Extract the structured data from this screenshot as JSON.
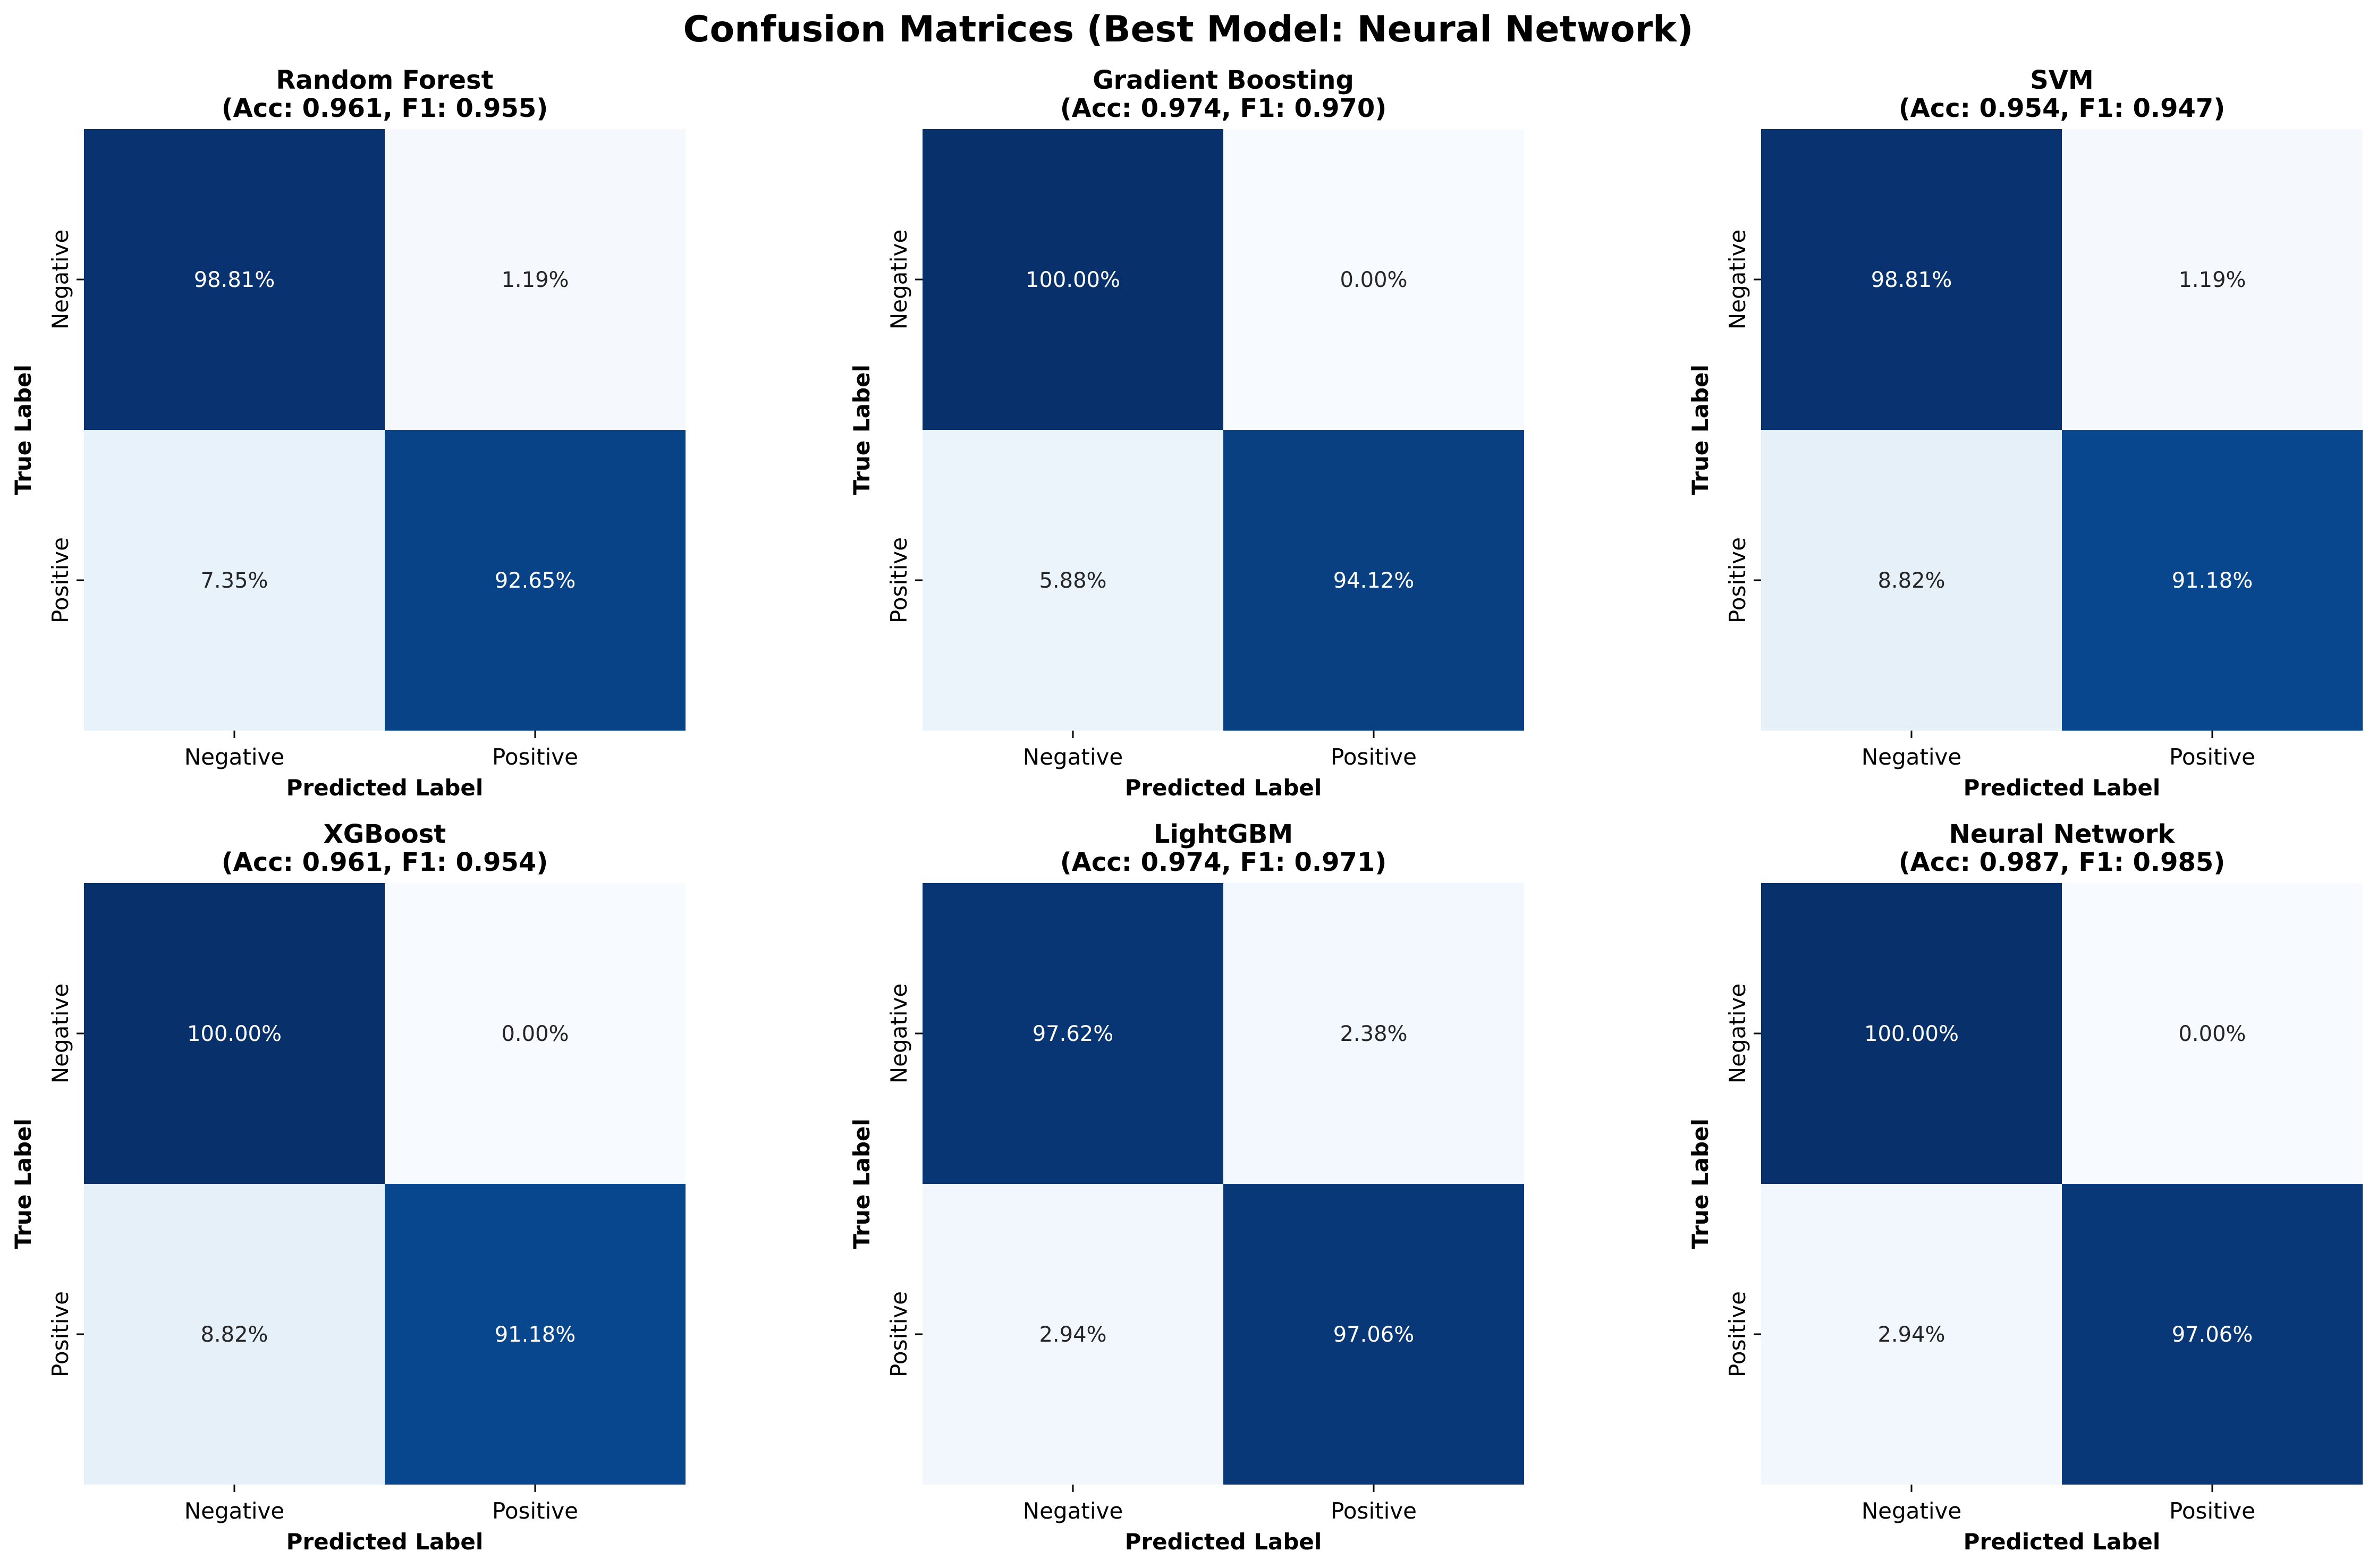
{
  "chart_data": {
    "type": "heatmap",
    "title": "Confusion Matrices (Best Model: Neural Network)",
    "colormap": "Blues",
    "value_range": [
      0,
      100
    ],
    "matrices": [
      {
        "model": "Random Forest",
        "subtitle": "(Acc: 0.961, F1: 0.955)",
        "xlabel": "Predicted Label",
        "ylabel": "True Label",
        "x_categories": [
          "Negative",
          "Positive"
        ],
        "y_categories": [
          "Negative",
          "Positive"
        ],
        "values": [
          [
            98.81,
            1.19
          ],
          [
            7.35,
            92.65
          ]
        ],
        "labels": [
          [
            "98.81%",
            "1.19%"
          ],
          [
            "7.35%",
            "92.65%"
          ]
        ]
      },
      {
        "model": "Gradient Boosting",
        "subtitle": "(Acc: 0.974, F1: 0.970)",
        "xlabel": "Predicted Label",
        "ylabel": "True Label",
        "x_categories": [
          "Negative",
          "Positive"
        ],
        "y_categories": [
          "Negative",
          "Positive"
        ],
        "values": [
          [
            100.0,
            0.0
          ],
          [
            5.88,
            94.12
          ]
        ],
        "labels": [
          [
            "100.00%",
            "0.00%"
          ],
          [
            "5.88%",
            "94.12%"
          ]
        ]
      },
      {
        "model": "SVM",
        "subtitle": "(Acc: 0.954, F1: 0.947)",
        "xlabel": "Predicted Label",
        "ylabel": "True Label",
        "x_categories": [
          "Negative",
          "Positive"
        ],
        "y_categories": [
          "Negative",
          "Positive"
        ],
        "values": [
          [
            98.81,
            1.19
          ],
          [
            8.82,
            91.18
          ]
        ],
        "labels": [
          [
            "98.81%",
            "1.19%"
          ],
          [
            "8.82%",
            "91.18%"
          ]
        ]
      },
      {
        "model": "XGBoost",
        "subtitle": "(Acc: 0.961, F1: 0.954)",
        "xlabel": "Predicted Label",
        "ylabel": "True Label",
        "x_categories": [
          "Negative",
          "Positive"
        ],
        "y_categories": [
          "Negative",
          "Positive"
        ],
        "values": [
          [
            100.0,
            0.0
          ],
          [
            8.82,
            91.18
          ]
        ],
        "labels": [
          [
            "100.00%",
            "0.00%"
          ],
          [
            "8.82%",
            "91.18%"
          ]
        ]
      },
      {
        "model": "LightGBM",
        "subtitle": "(Acc: 0.974, F1: 0.971)",
        "xlabel": "Predicted Label",
        "ylabel": "True Label",
        "x_categories": [
          "Negative",
          "Positive"
        ],
        "y_categories": [
          "Negative",
          "Positive"
        ],
        "values": [
          [
            97.62,
            2.38
          ],
          [
            2.94,
            97.06
          ]
        ],
        "labels": [
          [
            "97.62%",
            "2.38%"
          ],
          [
            "2.94%",
            "97.06%"
          ]
        ]
      },
      {
        "model": "Neural Network",
        "subtitle": "(Acc: 0.987, F1: 0.985)",
        "xlabel": "Predicted Label",
        "ylabel": "True Label",
        "x_categories": [
          "Negative",
          "Positive"
        ],
        "y_categories": [
          "Negative",
          "Positive"
        ],
        "values": [
          [
            100.0,
            0.0
          ],
          [
            2.94,
            97.06
          ]
        ],
        "labels": [
          [
            "100.00%",
            "0.00%"
          ],
          [
            "2.94%",
            "97.06%"
          ]
        ]
      }
    ]
  }
}
